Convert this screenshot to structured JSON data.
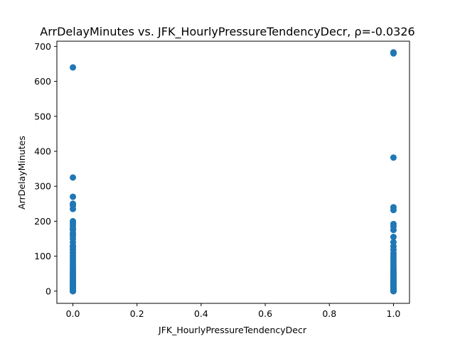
{
  "chart_data": {
    "type": "scatter",
    "title": "ArrDelayMinutes vs. JFK_HourlyPressureTendencyDecr, ρ=-0.0326",
    "xlabel": "JFK_HourlyPressureTendencyDecr",
    "ylabel": "ArrDelayMinutes",
    "xlim": [
      -0.05,
      1.05
    ],
    "ylim": [
      -35,
      715
    ],
    "xticks": [
      0.0,
      0.2,
      0.4,
      0.6,
      0.8,
      1.0
    ],
    "xtick_labels": [
      "0.0",
      "0.2",
      "0.4",
      "0.6",
      "0.8",
      "1.0"
    ],
    "yticks": [
      0,
      100,
      200,
      300,
      400,
      500,
      600,
      700
    ],
    "ytick_labels": [
      "0",
      "100",
      "200",
      "300",
      "400",
      "500",
      "600",
      "700"
    ],
    "grid": false,
    "legend": "none",
    "colors": {
      "marker": "#1f77b4"
    },
    "series": [
      {
        "x": [
          0,
          0,
          0,
          0,
          0,
          0,
          0,
          0,
          0,
          0,
          0,
          0,
          0,
          0,
          0,
          0,
          0,
          0,
          0,
          0,
          0,
          0,
          0,
          0,
          0,
          0,
          0,
          0,
          0,
          0,
          0,
          0,
          0,
          0,
          0,
          0,
          0,
          0,
          0,
          0,
          0,
          0,
          0,
          0,
          0,
          0,
          0,
          0,
          0,
          0,
          0,
          0,
          0,
          0,
          0,
          0,
          0,
          0,
          0,
          1,
          1,
          1,
          1,
          1,
          1,
          1,
          1,
          1,
          1,
          1,
          1,
          1,
          1,
          1,
          1,
          1,
          1,
          1,
          1,
          1,
          1,
          1,
          1,
          1,
          1,
          1,
          1,
          1,
          1,
          1,
          1,
          1,
          1,
          1,
          1,
          1,
          1,
          1,
          1,
          1,
          1,
          1,
          1,
          1,
          1,
          1,
          1,
          1
        ],
        "y": [
          640,
          325,
          270,
          250,
          245,
          235,
          200,
          195,
          188,
          180,
          175,
          165,
          158,
          150,
          140,
          130,
          125,
          118,
          110,
          102,
          96,
          90,
          84,
          78,
          72,
          66,
          60,
          55,
          50,
          46,
          42,
          38,
          34,
          30,
          27,
          24,
          21,
          18,
          15,
          13,
          11,
          9,
          7,
          5,
          4,
          3,
          2,
          1,
          0,
          0,
          0,
          1,
          2,
          3,
          5,
          8,
          12,
          20,
          0,
          683,
          680,
          382,
          240,
          232,
          192,
          185,
          175,
          155,
          140,
          128,
          118,
          108,
          100,
          92,
          85,
          78,
          72,
          65,
          60,
          55,
          50,
          46,
          42,
          38,
          34,
          30,
          27,
          24,
          21,
          18,
          15,
          13,
          11,
          9,
          7,
          5,
          4,
          3,
          2,
          1,
          0,
          0,
          1,
          2,
          4,
          6,
          10,
          0
        ]
      }
    ]
  }
}
